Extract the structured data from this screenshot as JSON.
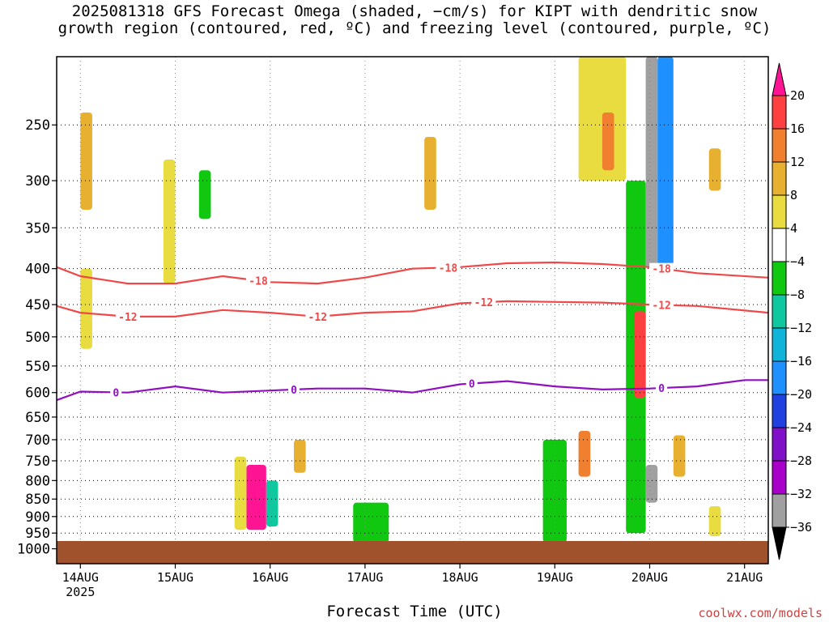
{
  "title": {
    "line1": "2025081318 GFS Forecast Omega (shaded, −cm/s) for KIPT with dendritic snow",
    "line2": "growth region (contoured, red, ºC) and freezing level (contoured, purple, ºC)"
  },
  "credit": "coolwx.com/models",
  "chart_data": {
    "type": "heatmap",
    "title": "2025081318 GFS Forecast Omega (shaded, −cm/s) for KIPT with dendritic snow growth region (contoured, red, ºC) and freezing level (contoured, purple, ºC)",
    "xlabel": "Forecast Time (UTC)",
    "ylabel": "",
    "y_scale": "log",
    "y_inverted": true,
    "ylim": [
      1050,
      200
    ],
    "xlim": [
      "2025-08-13T18Z",
      "2025-08-21T06Z"
    ],
    "x_ticks": [
      {
        "label": "14AUG",
        "sub": "2025",
        "time": "2025-08-14T00Z"
      },
      {
        "label": "15AUG",
        "sub": "",
        "time": "2025-08-15T00Z"
      },
      {
        "label": "16AUG",
        "sub": "",
        "time": "2025-08-16T00Z"
      },
      {
        "label": "17AUG",
        "sub": "",
        "time": "2025-08-17T00Z"
      },
      {
        "label": "18AUG",
        "sub": "",
        "time": "2025-08-18T00Z"
      },
      {
        "label": "19AUG",
        "sub": "",
        "time": "2025-08-19T00Z"
      },
      {
        "label": "20AUG",
        "sub": "",
        "time": "2025-08-20T00Z"
      },
      {
        "label": "21AUG",
        "sub": "",
        "time": "2025-08-21T00Z"
      }
    ],
    "y_ticks": [
      250,
      300,
      350,
      400,
      450,
      500,
      550,
      600,
      650,
      700,
      750,
      800,
      850,
      900,
      950,
      1000
    ],
    "grid": true,
    "colorbar": {
      "labels": [
        "20",
        "16",
        "12",
        "8",
        "4",
        "−4",
        "−8",
        "−12",
        "−16",
        "−20",
        "−24",
        "−28",
        "−32",
        "−36"
      ],
      "colors": [
        "#ff1493",
        "#ff4040",
        "#f08030",
        "#e8b030",
        "#e8dc40",
        "#ffffff",
        "#10c810",
        "#10c8a0",
        "#10b4d8",
        "#1e90ff",
        "#2040e0",
        "#8010c8",
        "#a800c8",
        "#a0a0a0",
        "#000000"
      ]
    },
    "ground_color": "#a0522d",
    "contours": [
      {
        "name": "-18",
        "color": "#f04848",
        "label_times": [
          "2025-08-15T21Z",
          "2025-08-17T21Z",
          "2025-08-20T03Z"
        ],
        "points": [
          [
            "2025-08-13T18Z",
            398
          ],
          [
            "2025-08-14T00Z",
            410
          ],
          [
            "2025-08-14T12Z",
            420
          ],
          [
            "2025-08-15T00Z",
            420
          ],
          [
            "2025-08-15T12Z",
            410
          ],
          [
            "2025-08-16T00Z",
            418
          ],
          [
            "2025-08-16T12Z",
            420
          ],
          [
            "2025-08-17T00Z",
            412
          ],
          [
            "2025-08-17T12Z",
            400
          ],
          [
            "2025-08-18T00Z",
            398
          ],
          [
            "2025-08-18T12Z",
            393
          ],
          [
            "2025-08-19T00Z",
            392
          ],
          [
            "2025-08-19T12Z",
            394
          ],
          [
            "2025-08-20T00Z",
            398
          ],
          [
            "2025-08-20T12Z",
            406
          ],
          [
            "2025-08-21T06Z",
            412
          ]
        ]
      },
      {
        "name": "-12",
        "color": "#f04848",
        "label_times": [
          "2025-08-14T12Z",
          "2025-08-16T12Z",
          "2025-08-18T06Z",
          "2025-08-20T03Z"
        ],
        "points": [
          [
            "2025-08-13T18Z",
            452
          ],
          [
            "2025-08-14T00Z",
            462
          ],
          [
            "2025-08-14T12Z",
            468
          ],
          [
            "2025-08-15T00Z",
            468
          ],
          [
            "2025-08-15T12Z",
            458
          ],
          [
            "2025-08-16T00Z",
            462
          ],
          [
            "2025-08-16T12Z",
            468
          ],
          [
            "2025-08-17T00Z",
            462
          ],
          [
            "2025-08-17T12Z",
            460
          ],
          [
            "2025-08-18T00Z",
            448
          ],
          [
            "2025-08-18T12Z",
            445
          ],
          [
            "2025-08-19T00Z",
            446
          ],
          [
            "2025-08-19T12Z",
            447
          ],
          [
            "2025-08-20T00Z",
            450
          ],
          [
            "2025-08-20T12Z",
            452
          ],
          [
            "2025-08-21T06Z",
            462
          ]
        ]
      },
      {
        "name": "0",
        "color": "#9010c0",
        "label_times": [
          "2025-08-14T09Z",
          "2025-08-16T06Z",
          "2025-08-18T03Z",
          "2025-08-20T03Z"
        ],
        "points": [
          [
            "2025-08-13T18Z",
            615
          ],
          [
            "2025-08-14T00Z",
            598
          ],
          [
            "2025-08-14T12Z",
            600
          ],
          [
            "2025-08-15T00Z",
            588
          ],
          [
            "2025-08-15T12Z",
            600
          ],
          [
            "2025-08-16T00Z",
            596
          ],
          [
            "2025-08-16T12Z",
            592
          ],
          [
            "2025-08-17T00Z",
            592
          ],
          [
            "2025-08-17T12Z",
            600
          ],
          [
            "2025-08-18T00Z",
            584
          ],
          [
            "2025-08-18T12Z",
            578
          ],
          [
            "2025-08-19T00Z",
            588
          ],
          [
            "2025-08-19T12Z",
            594
          ],
          [
            "2025-08-20T00Z",
            592
          ],
          [
            "2025-08-20T12Z",
            588
          ],
          [
            "2025-08-21T00Z",
            576
          ],
          [
            "2025-08-21T06Z",
            576
          ]
        ]
      }
    ],
    "shaded_regions": [
      {
        "t0": "2025-08-14T00Z",
        "t1": "2025-08-14T03Z",
        "p_top": 240,
        "p_bot": 330,
        "value": 8
      },
      {
        "t0": "2025-08-14T00Z",
        "t1": "2025-08-14T03Z",
        "p_top": 400,
        "p_bot": 520,
        "value": 6
      },
      {
        "t0": "2025-08-14T21Z",
        "t1": "2025-08-15T00Z",
        "p_top": 280,
        "p_bot": 420,
        "value": 6
      },
      {
        "t0": "2025-08-15T06Z",
        "t1": "2025-08-15T09Z",
        "p_top": 290,
        "p_bot": 340,
        "value": -6
      },
      {
        "t0": "2025-08-15T18Z",
        "t1": "2025-08-15T23Z",
        "p_top": 760,
        "p_bot": 940,
        "value": 20
      },
      {
        "t0": "2025-08-15T15Z",
        "t1": "2025-08-15T18Z",
        "p_top": 740,
        "p_bot": 940,
        "value": 6
      },
      {
        "t0": "2025-08-15T23Z",
        "t1": "2025-08-16T02Z",
        "p_top": 800,
        "p_bot": 930,
        "value": -12
      },
      {
        "t0": "2025-08-16T06Z",
        "t1": "2025-08-16T09Z",
        "p_top": 700,
        "p_bot": 780,
        "value": 10
      },
      {
        "t0": "2025-08-16T21Z",
        "t1": "2025-08-17T06Z",
        "p_top": 860,
        "p_bot": 980,
        "value": -6
      },
      {
        "t0": "2025-08-17T15Z",
        "t1": "2025-08-17T18Z",
        "p_top": 260,
        "p_bot": 330,
        "value": 10
      },
      {
        "t0": "2025-08-18T21Z",
        "t1": "2025-08-19T03Z",
        "p_top": 700,
        "p_bot": 980,
        "value": -6
      },
      {
        "t0": "2025-08-19T06Z",
        "t1": "2025-08-19T09Z",
        "p_top": 680,
        "p_bot": 790,
        "value": 12
      },
      {
        "t0": "2025-08-19T06Z",
        "t1": "2025-08-19T18Z",
        "p_top": 200,
        "p_bot": 300,
        "value": 6
      },
      {
        "t0": "2025-08-19T12Z",
        "t1": "2025-08-19T15Z",
        "p_top": 240,
        "p_bot": 290,
        "value": 12
      },
      {
        "t0": "2025-08-19T18Z",
        "t1": "2025-08-19T23Z",
        "p_top": 300,
        "p_bot": 950,
        "value": -8
      },
      {
        "t0": "2025-08-19T20Z",
        "t1": "2025-08-19T23Z",
        "p_top": 460,
        "p_bot": 610,
        "value": 16
      },
      {
        "t0": "2025-08-19T23Z",
        "t1": "2025-08-20T02Z",
        "p_top": 200,
        "p_bot": 400,
        "value": -36
      },
      {
        "t0": "2025-08-19T23Z",
        "t1": "2025-08-20T02Z",
        "p_top": 760,
        "p_bot": 860,
        "value": -36
      },
      {
        "t0": "2025-08-20T02Z",
        "t1": "2025-08-20T06Z",
        "p_top": 200,
        "p_bot": 400,
        "value": -20
      },
      {
        "t0": "2025-08-20T06Z",
        "t1": "2025-08-20T09Z",
        "p_top": 690,
        "p_bot": 790,
        "value": 10
      },
      {
        "t0": "2025-08-20T15Z",
        "t1": "2025-08-20T18Z",
        "p_top": 270,
        "p_bot": 310,
        "value": 10
      },
      {
        "t0": "2025-08-20T15Z",
        "t1": "2025-08-20T18Z",
        "p_top": 870,
        "p_bot": 960,
        "value": 6
      }
    ]
  }
}
